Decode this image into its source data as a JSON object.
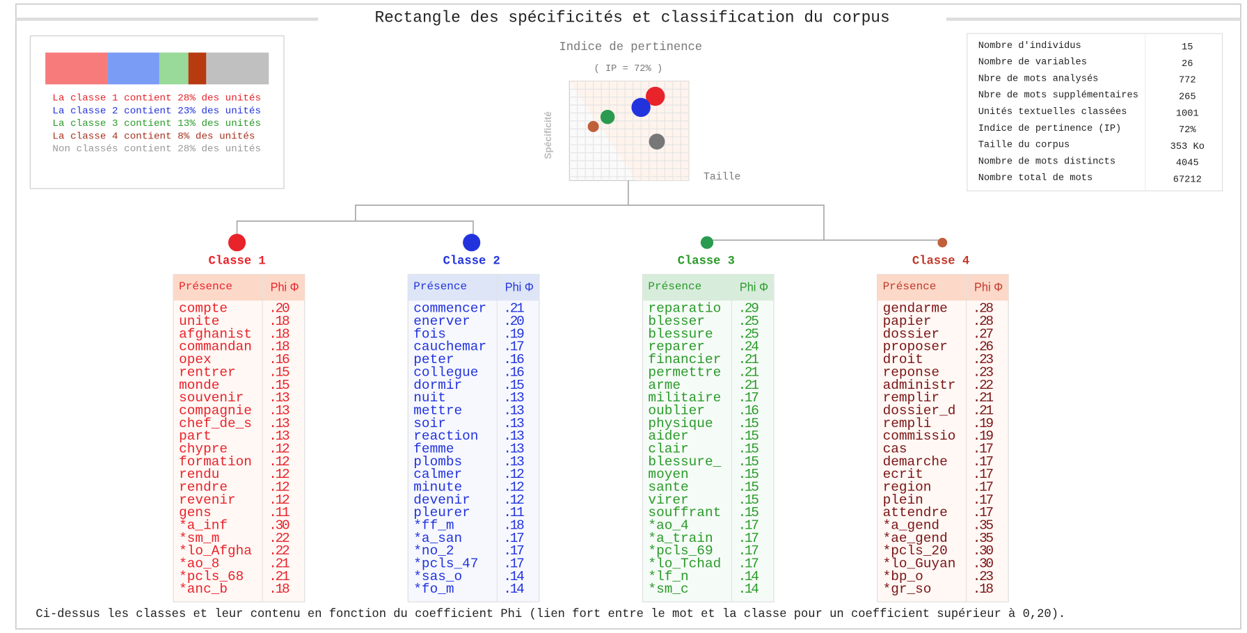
{
  "title": "Rectangle des spécificités et classification du corpus",
  "legend": {
    "items": [
      {
        "text": "La classe 1 contient 28% des unités",
        "share": 28,
        "color": "#e8232a",
        "bar_color": "#f77b7b"
      },
      {
        "text": "La classe 2 contient 23% des unités",
        "share": 23,
        "color": "#2233dd",
        "bar_color": "#7a9cf5"
      },
      {
        "text": "La classe 3 contient 13% des unités",
        "share": 13,
        "color": "#2a9a2a",
        "bar_color": "#99d999"
      },
      {
        "text": "La classe 4 contient 8% des unités",
        "share": 8,
        "color": "#a8321e",
        "bar_color": "#b83a10"
      },
      {
        "text": "Non classés contient 28% des unités",
        "share": 28,
        "color": "#999999",
        "bar_color": "#c0c0c0"
      }
    ]
  },
  "plot": {
    "title": "Indice de pertinence",
    "subtitle": "( IP = 72% )",
    "y_label": "Spécificité",
    "x_label": "Taille"
  },
  "stats": {
    "rows": [
      [
        "Nombre d'individus",
        "15"
      ],
      [
        "Nombre de variables",
        "26"
      ],
      [
        "Nbre de mots analysés",
        "772"
      ],
      [
        "Nbre de mots supplémentaires",
        "265"
      ],
      [
        "Unités textuelles classées",
        "1001"
      ],
      [
        "Indice de pertinence (IP)",
        "72%"
      ],
      [
        "Taille du corpus",
        "353 Ko"
      ],
      [
        "Nombre de mots distincts",
        "4045"
      ],
      [
        "Nombre total de mots",
        "67212"
      ]
    ]
  },
  "classes": [
    {
      "name": "Classe 1",
      "color": "#e8232a",
      "columns": [
        "Présence",
        "Phi Φ"
      ],
      "rows": [
        [
          "compte",
          ".20"
        ],
        [
          "unite",
          ".18"
        ],
        [
          "afghanist",
          ".18"
        ],
        [
          "commandan",
          ".18"
        ],
        [
          "opex",
          ".16"
        ],
        [
          "rentrer",
          ".15"
        ],
        [
          "monde",
          ".15"
        ],
        [
          "souvenir",
          ".13"
        ],
        [
          "compagnie",
          ".13"
        ],
        [
          "chef_de_s",
          ".13"
        ],
        [
          "part",
          ".13"
        ],
        [
          "chypre",
          ".12"
        ],
        [
          "formation",
          ".12"
        ],
        [
          "rendu",
          ".12"
        ],
        [
          "rendre",
          ".12"
        ],
        [
          "revenir",
          ".12"
        ],
        [
          "gens",
          ".11"
        ],
        [
          "*a_inf",
          ".30"
        ],
        [
          "*sm_m",
          ".22"
        ],
        [
          "*lo_Afgha",
          ".22"
        ],
        [
          "*ao_8",
          ".21"
        ],
        [
          "*pcls_68",
          ".21"
        ],
        [
          "*anc_b",
          ".18"
        ]
      ]
    },
    {
      "name": "Classe 2",
      "color": "#2233dd",
      "columns": [
        "Présence",
        "Phi Φ"
      ],
      "rows": [
        [
          "commencer",
          ".21"
        ],
        [
          "enerver",
          ".20"
        ],
        [
          "fois",
          ".19"
        ],
        [
          "cauchemar",
          ".17"
        ],
        [
          "peter",
          ".16"
        ],
        [
          "collegue",
          ".16"
        ],
        [
          "dormir",
          ".15"
        ],
        [
          "nuit",
          ".13"
        ],
        [
          "mettre",
          ".13"
        ],
        [
          "soir",
          ".13"
        ],
        [
          "reaction",
          ".13"
        ],
        [
          "femme",
          ".13"
        ],
        [
          "plombs",
          ".13"
        ],
        [
          "calmer",
          ".12"
        ],
        [
          "minute",
          ".12"
        ],
        [
          "devenir",
          ".12"
        ],
        [
          "pleurer",
          ".11"
        ],
        [
          "*ff_m",
          ".18"
        ],
        [
          "*a_san",
          ".17"
        ],
        [
          "*no_2",
          ".17"
        ],
        [
          "*pcls_47",
          ".17"
        ],
        [
          "*sas_o",
          ".14"
        ],
        [
          "*fo_m",
          ".14"
        ]
      ]
    },
    {
      "name": "Classe 3",
      "color": "#2a9a2a",
      "columns": [
        "Présence",
        "Phi Φ"
      ],
      "rows": [
        [
          "reparatio",
          ".29"
        ],
        [
          "blesser",
          ".25"
        ],
        [
          "blessure",
          ".25"
        ],
        [
          "reparer",
          ".24"
        ],
        [
          "financier",
          ".21"
        ],
        [
          "permettre",
          ".21"
        ],
        [
          "arme",
          ".21"
        ],
        [
          "militaire",
          ".17"
        ],
        [
          "oublier",
          ".16"
        ],
        [
          "physique",
          ".15"
        ],
        [
          "aider",
          ".15"
        ],
        [
          "clair",
          ".15"
        ],
        [
          "blessure_",
          ".15"
        ],
        [
          "moyen",
          ".15"
        ],
        [
          "sante",
          ".15"
        ],
        [
          "virer",
          ".15"
        ],
        [
          "souffrant",
          ".15"
        ],
        [
          "*ao_4",
          ".17"
        ],
        [
          "*a_train",
          ".17"
        ],
        [
          "*pcls_69",
          ".17"
        ],
        [
          "*lo_Tchad",
          ".17"
        ],
        [
          "*lf_n",
          ".14"
        ],
        [
          "*sm_c",
          ".14"
        ]
      ]
    },
    {
      "name": "Classe 4",
      "color": "#c0392b",
      "columns": [
        "Présence",
        "Phi Φ"
      ],
      "rows": [
        [
          "gendarme",
          ".28"
        ],
        [
          "papier",
          ".28"
        ],
        [
          "dossier",
          ".27"
        ],
        [
          "proposer",
          ".26"
        ],
        [
          "droit",
          ".23"
        ],
        [
          "reponse",
          ".23"
        ],
        [
          "administr",
          ".22"
        ],
        [
          "remplir",
          ".21"
        ],
        [
          "dossier_d",
          ".21"
        ],
        [
          "rempli",
          ".19"
        ],
        [
          "commissio",
          ".19"
        ],
        [
          "cas",
          ".17"
        ],
        [
          "demarche",
          ".17"
        ],
        [
          "ecrit",
          ".17"
        ],
        [
          "region",
          ".17"
        ],
        [
          "plein",
          ".17"
        ],
        [
          "attendre",
          ".17"
        ],
        [
          "*a_gend",
          ".35"
        ],
        [
          "*ae_gend",
          ".35"
        ],
        [
          "*pcls_20",
          ".30"
        ],
        [
          "*lo_Guyan",
          ".30"
        ],
        [
          "*bp_o",
          ".23"
        ],
        [
          "*gr_so",
          ".18"
        ]
      ]
    }
  ],
  "footer": "Ci-dessus les classes et leur contenu en fonction du coefficient Phi (lien fort entre le mot et la classe pour un coefficient supérieur à 0,20)."
}
